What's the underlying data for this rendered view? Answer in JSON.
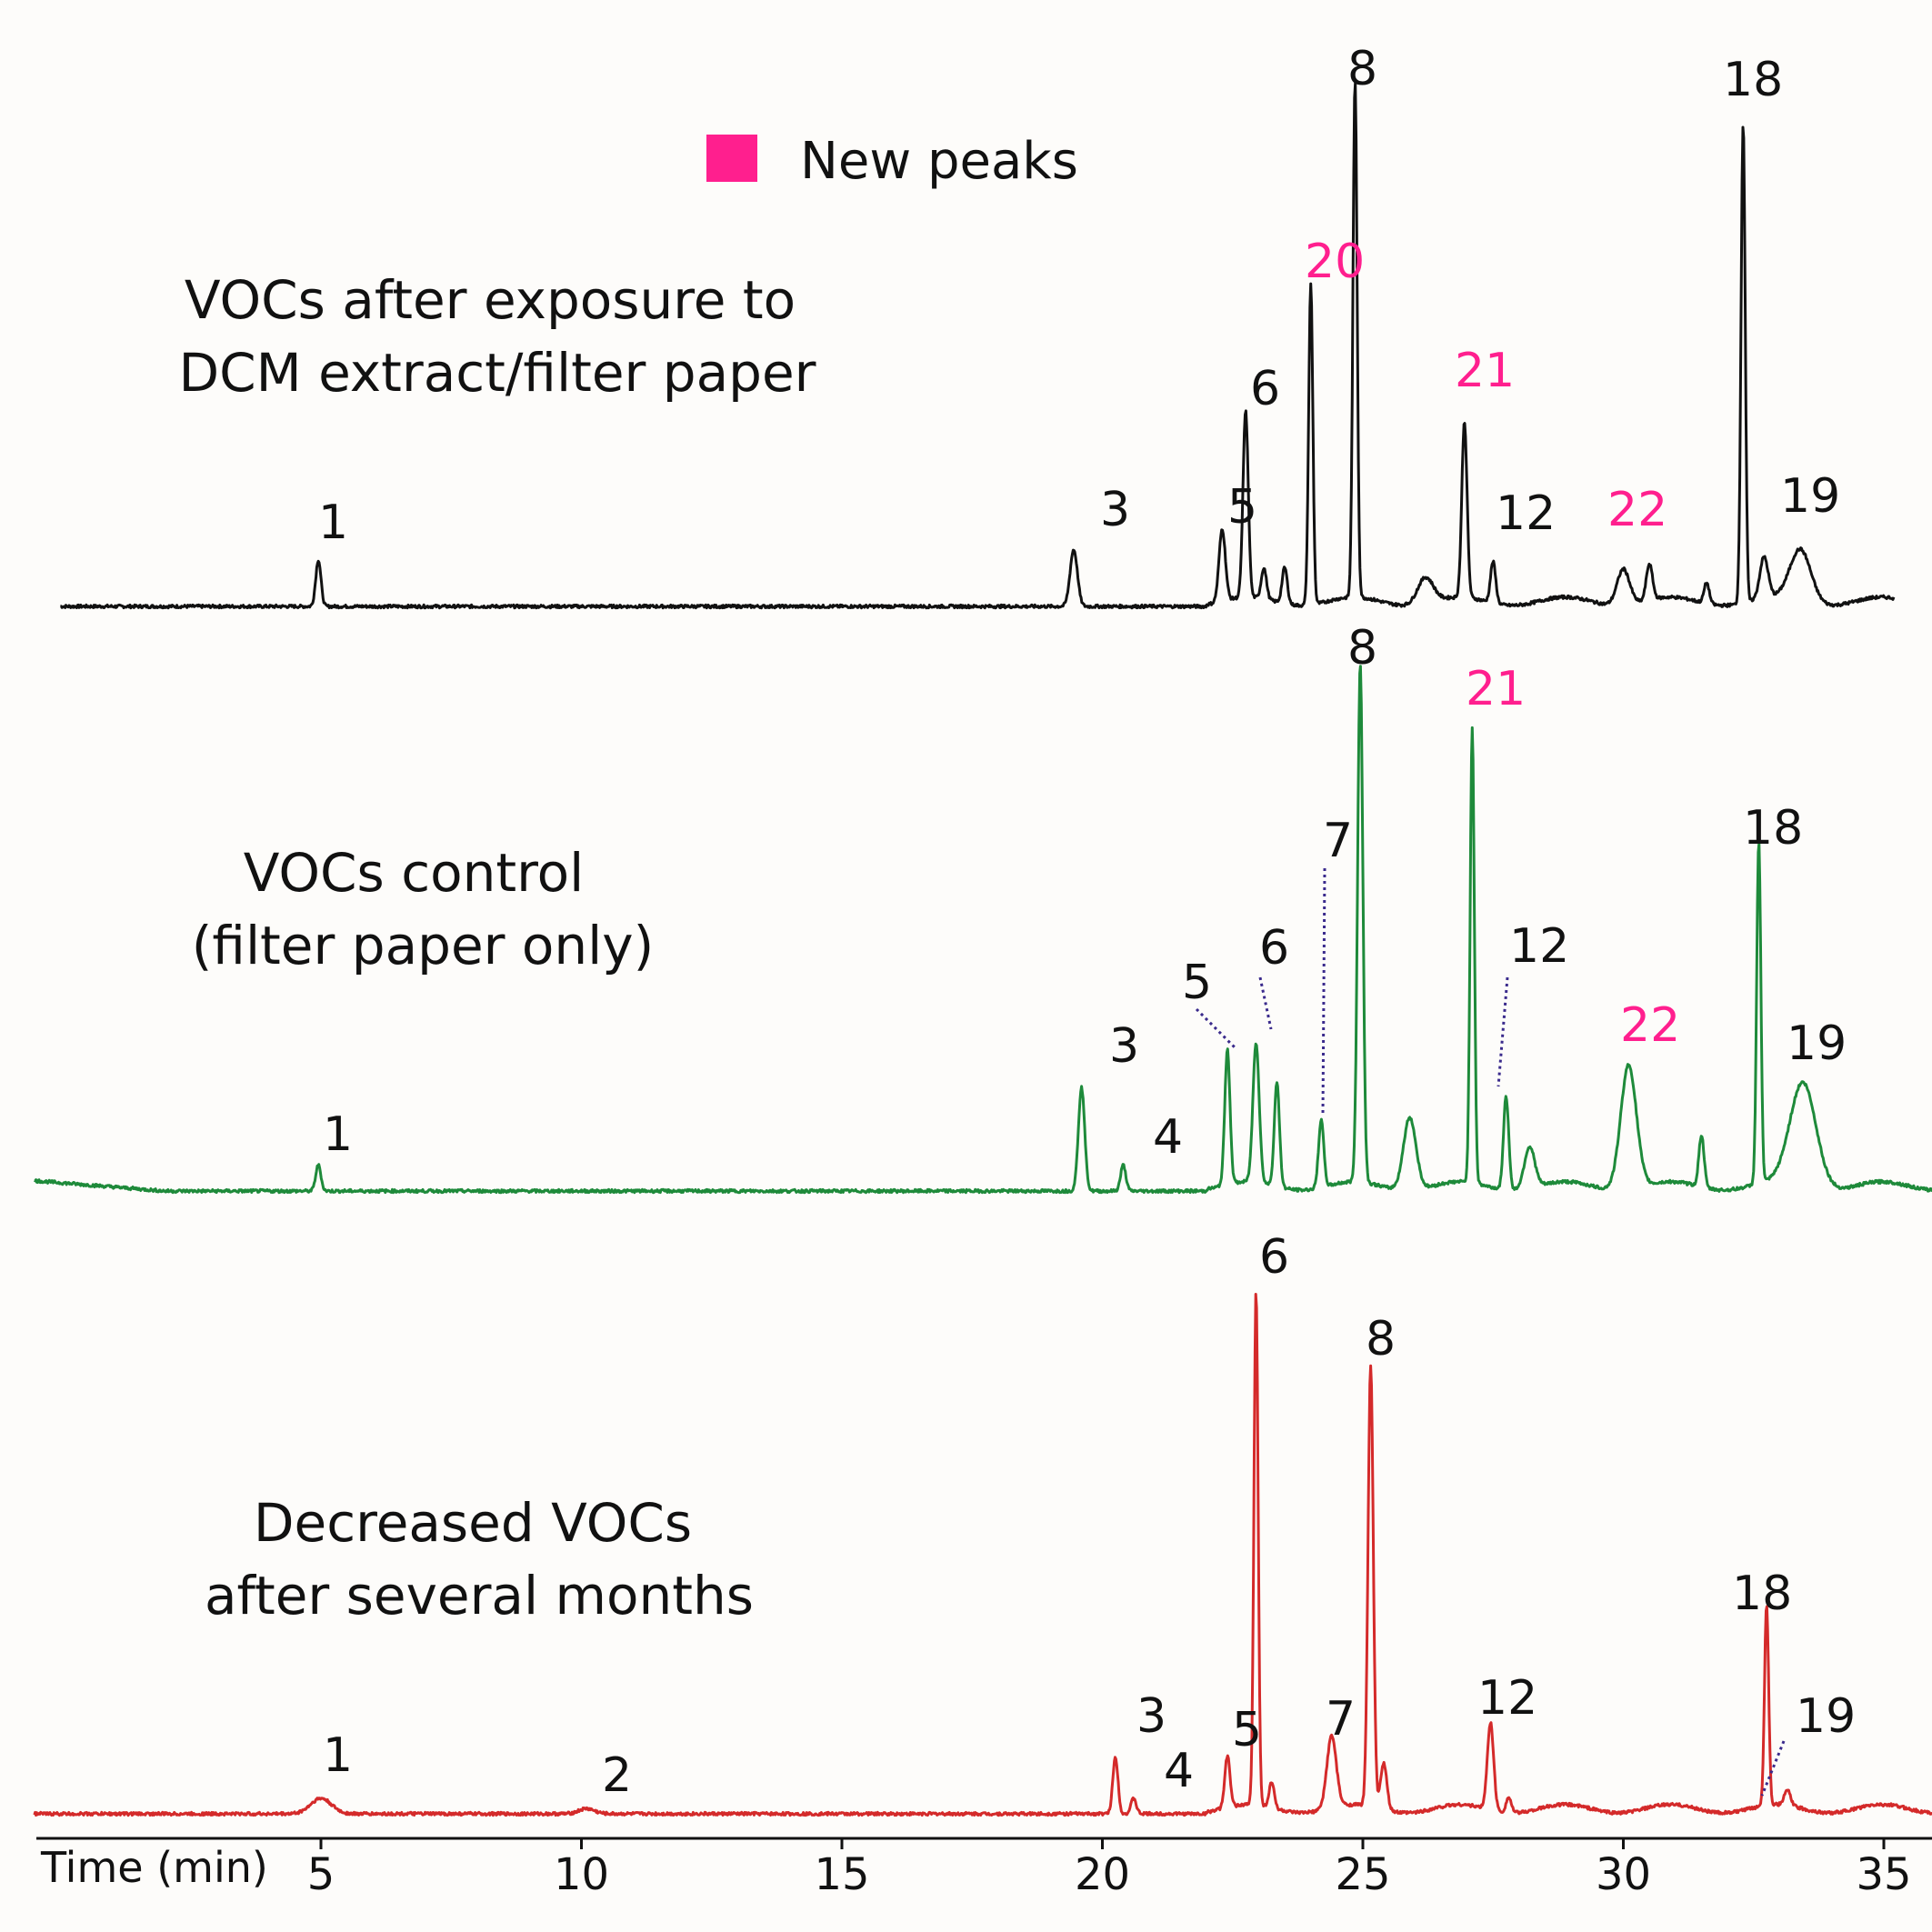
{
  "colors": {
    "new_peak": "#ff1f8e",
    "label": "#111111",
    "leader": "#3a2a8c",
    "background": "#fdfcfa"
  },
  "legend": {
    "label": "New peaks",
    "swatch_color": "#ff1f8e"
  },
  "chart_data": {
    "type": "line",
    "xaxis": {
      "label": "Time (min)",
      "ticks": [
        5,
        10,
        15,
        20,
        25,
        30,
        35
      ],
      "range": [
        0,
        36
      ]
    },
    "series": [
      {
        "name": "VOCs after exposure to DCM extract/filter paper",
        "title_lines": [
          "VOCs after exposure to",
          "DCM extract/filter paper"
        ],
        "color": "#111111",
        "time_range": [
          0,
          35.2
        ],
        "peaks": [
          {
            "label": "1",
            "t": 4.95,
            "h": 0.09,
            "w": 0.05
          },
          {
            "label": "3",
            "t": 19.45,
            "h": 0.11,
            "w": 0.07
          },
          {
            "label": "5",
            "t": 22.3,
            "h": 0.14,
            "w": 0.06
          },
          {
            "label": "6",
            "t": 22.75,
            "h": 0.36,
            "w": 0.05
          },
          {
            "label": "",
            "t": 23.1,
            "h": 0.06,
            "w": 0.05
          },
          {
            "label": "",
            "t": 23.5,
            "h": 0.07,
            "w": 0.05
          },
          {
            "label": "20",
            "t": 24.0,
            "h": 0.62,
            "w": 0.04,
            "new": true
          },
          {
            "label": "8",
            "t": 24.85,
            "h": 1.0,
            "w": 0.04
          },
          {
            "label": "",
            "t": 26.2,
            "h": 0.05,
            "w": 0.15
          },
          {
            "label": "21",
            "t": 26.95,
            "h": 0.34,
            "w": 0.05,
            "new": true
          },
          {
            "label": "12",
            "t": 27.5,
            "h": 0.08,
            "w": 0.05
          },
          {
            "label": "22",
            "t": 30.0,
            "h": 0.07,
            "w": 0.12,
            "new": true
          },
          {
            "label": "",
            "t": 30.5,
            "h": 0.07,
            "w": 0.06
          },
          {
            "label": "",
            "t": 31.6,
            "h": 0.04,
            "w": 0.05
          },
          {
            "label": "18",
            "t": 32.3,
            "h": 0.93,
            "w": 0.04
          },
          {
            "label": "",
            "t": 32.7,
            "h": 0.08,
            "w": 0.08
          },
          {
            "label": "19",
            "t": 33.4,
            "h": 0.1,
            "w": 0.2
          }
        ]
      },
      {
        "name": "VOCs control (filter paper only)",
        "title_lines": [
          "VOCs control",
          "(filter paper only)"
        ],
        "color": "#1e8a3a",
        "time_range": [
          -0.5,
          36.5
        ],
        "peaks": [
          {
            "label": "1",
            "t": 4.95,
            "h": 0.05,
            "w": 0.05
          },
          {
            "label": "3",
            "t": 19.6,
            "h": 0.2,
            "w": 0.06
          },
          {
            "label": "4",
            "t": 20.4,
            "h": 0.05,
            "w": 0.05
          },
          {
            "label": "5",
            "t": 22.4,
            "h": 0.26,
            "w": 0.05
          },
          {
            "label": "6",
            "t": 22.95,
            "h": 0.27,
            "w": 0.06
          },
          {
            "label": "",
            "t": 23.35,
            "h": 0.2,
            "w": 0.05
          },
          {
            "label": "7",
            "t": 24.2,
            "h": 0.13,
            "w": 0.05
          },
          {
            "label": "8",
            "t": 24.95,
            "h": 1.0,
            "w": 0.05
          },
          {
            "label": "",
            "t": 25.9,
            "h": 0.14,
            "w": 0.12
          },
          {
            "label": "21",
            "t": 27.1,
            "h": 0.88,
            "w": 0.04,
            "new": true
          },
          {
            "label": "12",
            "t": 27.75,
            "h": 0.18,
            "w": 0.05
          },
          {
            "label": "",
            "t": 28.2,
            "h": 0.08,
            "w": 0.1
          },
          {
            "label": "22",
            "t": 30.1,
            "h": 0.24,
            "w": 0.15,
            "new": true
          },
          {
            "label": "",
            "t": 31.5,
            "h": 0.1,
            "w": 0.05
          },
          {
            "label": "18",
            "t": 32.6,
            "h": 0.66,
            "w": 0.04
          },
          {
            "label": "19",
            "t": 33.45,
            "h": 0.2,
            "w": 0.25
          }
        ]
      },
      {
        "name": "Decreased VOCs after several months",
        "title_lines": [
          "Decreased VOCs",
          "after several months"
        ],
        "color": "#d42a2a",
        "time_range": [
          -0.5,
          36.3
        ],
        "peaks": [
          {
            "label": "1",
            "t": 5.0,
            "h": 0.03,
            "w": 0.2
          },
          {
            "label": "2",
            "t": 10.1,
            "h": 0.01,
            "w": 0.15
          },
          {
            "label": "3",
            "t": 20.25,
            "h": 0.11,
            "w": 0.05
          },
          {
            "label": "4",
            "t": 20.6,
            "h": 0.03,
            "w": 0.05
          },
          {
            "label": "5",
            "t": 22.4,
            "h": 0.1,
            "w": 0.05
          },
          {
            "label": "6",
            "t": 22.95,
            "h": 1.0,
            "w": 0.04
          },
          {
            "label": "",
            "t": 23.25,
            "h": 0.05,
            "w": 0.05
          },
          {
            "label": "7",
            "t": 24.4,
            "h": 0.14,
            "w": 0.09
          },
          {
            "label": "8",
            "t": 25.15,
            "h": 0.86,
            "w": 0.05
          },
          {
            "label": "",
            "t": 25.4,
            "h": 0.09,
            "w": 0.06
          },
          {
            "label": "12",
            "t": 27.45,
            "h": 0.17,
            "w": 0.06
          },
          {
            "label": "",
            "t": 27.8,
            "h": 0.03,
            "w": 0.05
          },
          {
            "label": "18",
            "t": 32.75,
            "h": 0.39,
            "w": 0.04
          },
          {
            "label": "19",
            "t": 33.15,
            "h": 0.03,
            "w": 0.06
          }
        ]
      }
    ]
  }
}
